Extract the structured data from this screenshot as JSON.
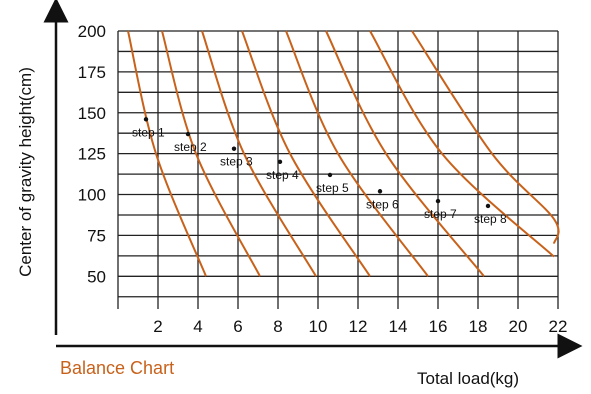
{
  "chart_data": {
    "type": "line",
    "caption": "Balance Chart",
    "xlabel": "Total load(kg)",
    "ylabel": "Center of gravity height(cm)",
    "xlim": [
      0,
      22
    ],
    "ylim": [
      30,
      200
    ],
    "x_ticks": [
      "2",
      "4",
      "6",
      "8",
      "10",
      "12",
      "14",
      "16",
      "18",
      "20",
      "22"
    ],
    "y_ticks": [
      "50",
      "75",
      "100",
      "125",
      "150",
      "175",
      "200"
    ],
    "grid": true,
    "series_color": "#c8621b",
    "series": [
      {
        "points": [
          [
            0.5,
            200
          ],
          [
            1.9,
            125
          ],
          [
            4.4,
            50
          ]
        ]
      },
      {
        "points": [
          [
            2.2,
            200
          ],
          [
            3.9,
            125
          ],
          [
            7.1,
            50
          ]
        ]
      },
      {
        "points": [
          [
            4.2,
            200
          ],
          [
            6.3,
            125
          ],
          [
            9.9,
            50
          ]
        ]
      },
      {
        "points": [
          [
            6.2,
            200
          ],
          [
            8.6,
            125
          ],
          [
            12.6,
            50
          ]
        ]
      },
      {
        "points": [
          [
            8.4,
            200
          ],
          [
            11.0,
            125
          ],
          [
            15.5,
            50
          ]
        ]
      },
      {
        "points": [
          [
            10.4,
            200
          ],
          [
            13.4,
            125
          ],
          [
            18.3,
            50
          ]
        ]
      },
      {
        "points": [
          [
            12.6,
            200
          ],
          [
            16.2,
            125
          ],
          [
            21.8,
            62
          ]
        ]
      },
      {
        "points": [
          [
            14.7,
            200
          ],
          [
            18.7,
            125
          ],
          [
            21.8,
            85
          ],
          [
            21.8,
            70
          ]
        ]
      }
    ],
    "steps": [
      {
        "label": "step 1",
        "x": 1.4,
        "y": 146
      },
      {
        "label": "step 2",
        "x": 3.5,
        "y": 137
      },
      {
        "label": "step 3",
        "x": 5.8,
        "y": 128
      },
      {
        "label": "step 4",
        "x": 8.1,
        "y": 120
      },
      {
        "label": "step 5",
        "x": 10.6,
        "y": 112
      },
      {
        "label": "step 6",
        "x": 13.1,
        "y": 102
      },
      {
        "label": "step 7",
        "x": 16.0,
        "y": 96
      },
      {
        "label": "step 8",
        "x": 18.5,
        "y": 93
      }
    ]
  }
}
